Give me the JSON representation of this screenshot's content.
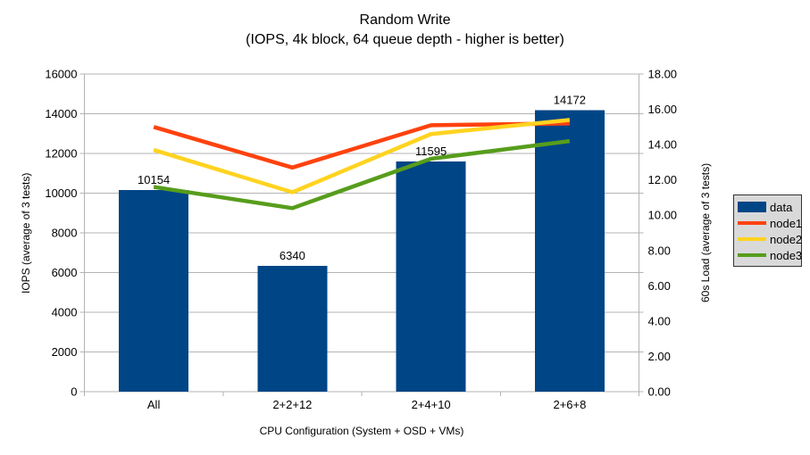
{
  "title": {
    "line1": "Random Write",
    "line2": "(IOPS, 4k block, 64 queue depth - higher is better)"
  },
  "chart_data": {
    "type": "bar+line combo",
    "categories": [
      "All",
      "2+2+12",
      "2+4+10",
      "2+6+8"
    ],
    "bar_series": {
      "name": "data",
      "axis": "left",
      "color": "#004586",
      "values": [
        10154,
        6340,
        11595,
        14172
      ],
      "labels": [
        "10154",
        "6340",
        "11595",
        "14172"
      ]
    },
    "line_series": [
      {
        "name": "node1",
        "axis": "right",
        "color": "#ff420e",
        "values": [
          15.0,
          12.7,
          15.1,
          15.2
        ]
      },
      {
        "name": "node2",
        "axis": "right",
        "color": "#ffd320",
        "values": [
          13.7,
          11.3,
          14.6,
          15.4
        ]
      },
      {
        "name": "node3",
        "axis": "right",
        "color": "#579d1c",
        "values": [
          11.6,
          10.4,
          13.2,
          14.2
        ]
      }
    ],
    "left_axis": {
      "title": "IOPS (average of 3 tests)",
      "min": 0,
      "max": 16000,
      "step": 2000,
      "tick_labels": [
        "0",
        "2000",
        "4000",
        "6000",
        "8000",
        "10000",
        "12000",
        "14000",
        "16000"
      ]
    },
    "right_axis": {
      "title": "60s Load (average of 3 tests)",
      "min": 0,
      "max": 18,
      "step": 2,
      "tick_labels": [
        "0.00",
        "2.00",
        "4.00",
        "6.00",
        "8.00",
        "10.00",
        "12.00",
        "14.00",
        "16.00",
        "18.00"
      ]
    },
    "x_axis": {
      "title": "CPU Configuration (System + OSD + VMs)"
    },
    "legend": {
      "position": "right",
      "entries": [
        {
          "label": "data",
          "color": "#004586",
          "swatch": "bar"
        },
        {
          "label": "node1",
          "color": "#ff420e",
          "swatch": "line"
        },
        {
          "label": "node2",
          "color": "#ffd320",
          "swatch": "line"
        },
        {
          "label": "node3",
          "color": "#579d1c",
          "swatch": "line"
        }
      ]
    },
    "grid": {
      "color": "#b3b3b3",
      "axis_color": "#b3b3b3",
      "horizontal": true,
      "legend_bg": "#d9d9d9"
    }
  }
}
